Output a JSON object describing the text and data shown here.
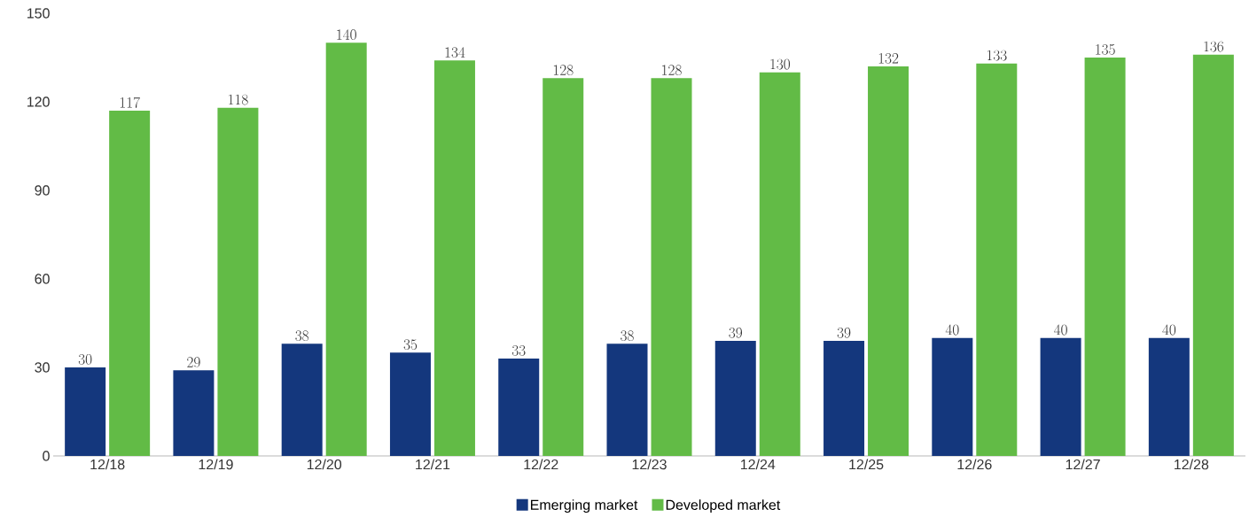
{
  "chart_data": {
    "type": "bar",
    "categories": [
      "12/18",
      "12/19",
      "12/20",
      "12/21",
      "12/22",
      "12/23",
      "12/24",
      "12/25",
      "12/26",
      "12/27",
      "12/28"
    ],
    "series": [
      {
        "name": "Emerging market",
        "color": "#14377d",
        "values": [
          30,
          29,
          38,
          35,
          33,
          38,
          39,
          39,
          40,
          40,
          40
        ]
      },
      {
        "name": "Developed market",
        "color": "#62bb46",
        "values": [
          117,
          118,
          140,
          134,
          128,
          128,
          130,
          132,
          133,
          135,
          136
        ]
      }
    ],
    "ylim": [
      0,
      150
    ],
    "yticks": [
      0,
      30,
      60,
      90,
      120,
      150
    ],
    "data_labels": true,
    "legend": "bottom",
    "grid": false
  }
}
